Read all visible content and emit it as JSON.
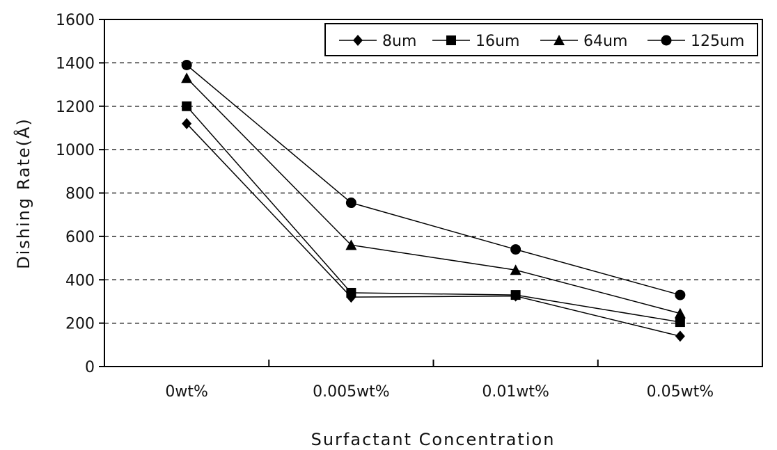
{
  "chart_data": {
    "type": "line",
    "title": "",
    "xlabel": "Surfactant Concentration",
    "ylabel": "Dishing Rate(Å)",
    "categories": [
      "0wt%",
      "0.005wt%",
      "0.01wt%",
      "0.05wt%"
    ],
    "ylim": [
      0,
      1600
    ],
    "yticks": [
      0,
      200,
      400,
      600,
      800,
      1000,
      1200,
      1400,
      1600
    ],
    "grid": "horizontal-dashed",
    "legend_position": "top-right",
    "series": [
      {
        "name": "8um",
        "marker": "diamond",
        "values": [
          1120,
          320,
          325,
          140
        ]
      },
      {
        "name": "16um",
        "marker": "square",
        "values": [
          1200,
          340,
          330,
          205
        ]
      },
      {
        "name": "64um",
        "marker": "triangle",
        "values": [
          1330,
          560,
          445,
          245
        ]
      },
      {
        "name": "125um",
        "marker": "circle",
        "values": [
          1390,
          755,
          540,
          330
        ]
      }
    ]
  }
}
